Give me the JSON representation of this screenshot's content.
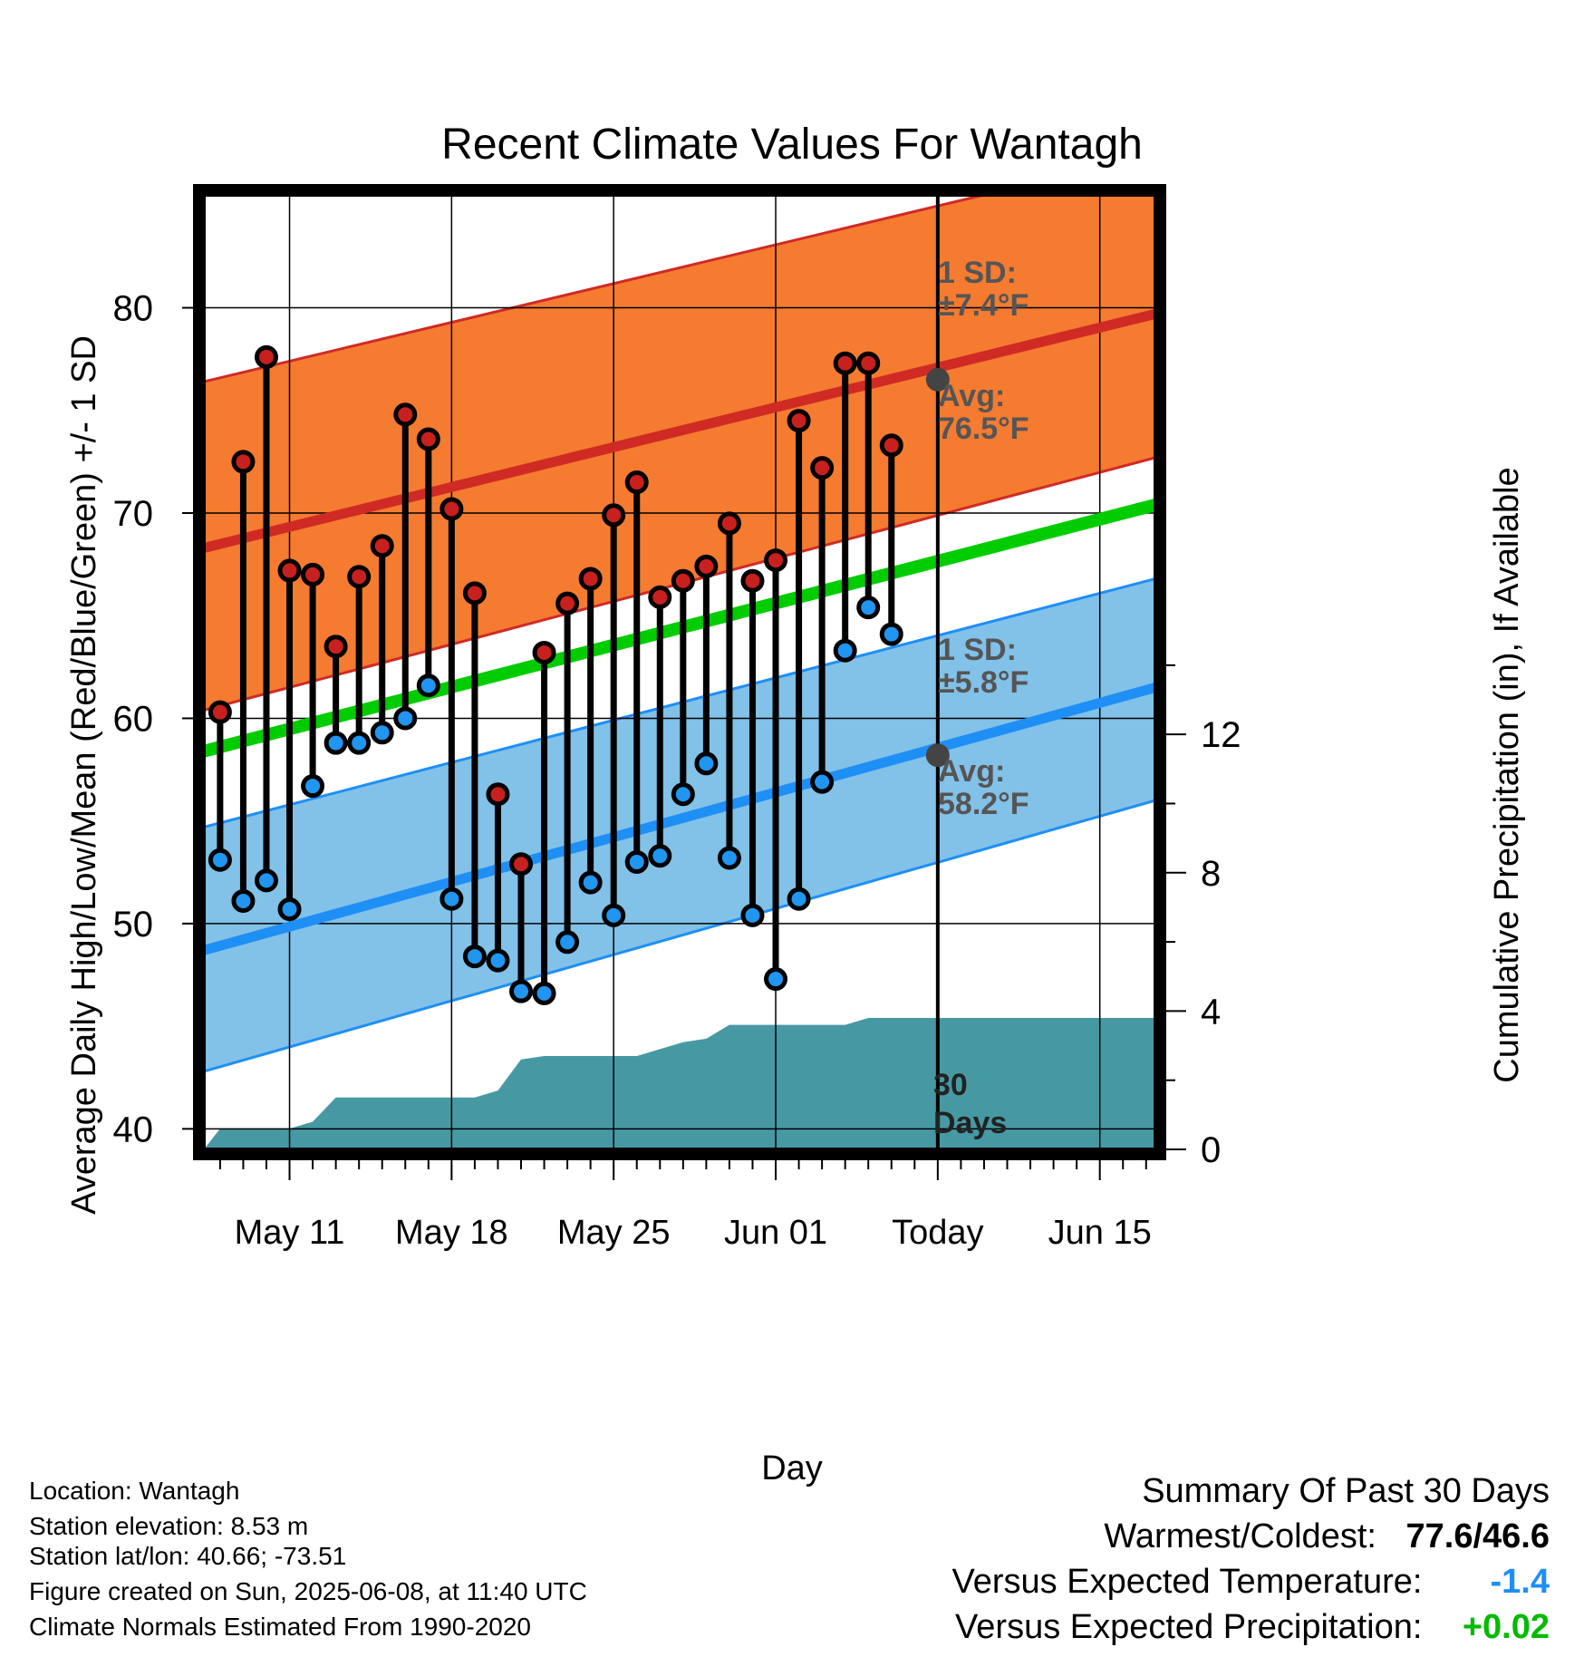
{
  "chart_data": {
    "type": "line",
    "title": "Recent Climate Values For Wantagh",
    "xlabel": "Day",
    "ylabel": "Average Daily High/Low/Mean (Red/Blue/Green) +/- 1 SD",
    "y2label": "Cumulative Precipitation (in), If Available",
    "ylim": [
      39,
      85.5
    ],
    "y2lim": [
      0,
      27.6
    ],
    "yticks": [
      40,
      50,
      60,
      70,
      80
    ],
    "y2ticks": [
      0,
      4,
      8,
      12
    ],
    "xlim": [
      7.3,
      48.4
    ],
    "xtick_positions": [
      11,
      18,
      25,
      32,
      39,
      46
    ],
    "xtick_labels": [
      "May 11",
      "May 18",
      "May 25",
      "Jun 01",
      "Today",
      "Jun 15"
    ],
    "grid": true,
    "x_note": "day number counted from May 1 (May 1 = 1)",
    "days": [
      8,
      9,
      10,
      11,
      12,
      13,
      14,
      15,
      16,
      17,
      18,
      19,
      20,
      21,
      22,
      23,
      24,
      25,
      26,
      27,
      28,
      29,
      30,
      31,
      32,
      33,
      34,
      35,
      36,
      37,
      38
    ],
    "highs": [
      60.3,
      72.5,
      77.6,
      67.2,
      67.0,
      63.5,
      66.9,
      68.4,
      74.8,
      73.6,
      70.2,
      66.1,
      56.3,
      52.9,
      63.2,
      65.6,
      66.8,
      69.9,
      71.5,
      65.9,
      66.7,
      67.4,
      69.5,
      66.7,
      67.7,
      74.5,
      72.2,
      77.3,
      77.3,
      73.3,
      null
    ],
    "lows": [
      53.1,
      51.1,
      52.1,
      50.7,
      56.7,
      58.8,
      58.8,
      59.3,
      60.0,
      61.6,
      51.2,
      48.4,
      48.2,
      46.7,
      46.6,
      49.1,
      52.0,
      50.4,
      53.0,
      53.3,
      56.3,
      57.8,
      53.2,
      50.4,
      47.3,
      51.2,
      56.9,
      63.3,
      65.4,
      64.1,
      null
    ],
    "normal_high": {
      "x": [
        7.3,
        48.4
      ],
      "values": [
        68.3,
        79.7
      ]
    },
    "normal_high_band": {
      "upper": [
        76.4,
        87.5
      ],
      "lower": [
        60.4,
        72.7
      ]
    },
    "normal_low": {
      "x": [
        7.3,
        48.4
      ],
      "values": [
        48.7,
        61.5
      ]
    },
    "normal_low_band": {
      "upper": [
        54.7,
        66.8
      ],
      "lower": [
        42.8,
        56.0
      ]
    },
    "normal_mean": {
      "x": [
        7.3,
        48.4
      ],
      "values": [
        58.4,
        70.4
      ]
    },
    "precip_cumulative": {
      "x": [
        7.3,
        8,
        9,
        10,
        11,
        12,
        13,
        14,
        15,
        16,
        17,
        18,
        19,
        20,
        21,
        22,
        23,
        24,
        25,
        26,
        27,
        28,
        29,
        30,
        31,
        32,
        33,
        34,
        35,
        36,
        37,
        38,
        48.4
      ],
      "values": [
        0.0,
        0.6,
        0.6,
        0.6,
        0.6,
        0.8,
        1.5,
        1.5,
        1.5,
        1.5,
        1.5,
        1.5,
        1.5,
        1.7,
        2.6,
        2.7,
        2.7,
        2.7,
        2.7,
        2.7,
        2.9,
        3.1,
        3.2,
        3.6,
        3.6,
        3.6,
        3.6,
        3.6,
        3.6,
        3.8,
        3.8,
        3.8,
        3.8
      ]
    },
    "today_marker": {
      "x": 39,
      "label_line1": "30",
      "label_line2": "Days"
    },
    "annotations": {
      "high_sd_line1": "1 SD:",
      "high_sd_line2": "±7.4°F",
      "high_avg_line1": "Avg:",
      "high_avg_line2": "76.5°F",
      "high_avg_value": 76.5,
      "low_sd_line1": "1 SD:",
      "low_sd_line2": "±5.8°F",
      "low_avg_line1": "Avg:",
      "low_avg_line2": "58.2°F",
      "low_avg_value": 58.2
    },
    "colors": {
      "high_band": "#F47B30",
      "high_line": "#D02A25",
      "low_band": "#82C1E8",
      "low_line": "#1E8FF5",
      "mean_line": "#00CC00",
      "precip": "#4699A3",
      "high_marker": "#C8201E",
      "low_marker": "#2096F0",
      "annotation_text": "#555555"
    }
  },
  "info": {
    "location": "Location: Wantagh",
    "elevation": "Station elevation: 8.53 m",
    "latlon": "Station lat/lon: 40.66; -73.51",
    "created": "Figure created on Sun, 2025-06-08, at 11:40 UTC",
    "normals": "Climate Normals Estimated From 1990-2020"
  },
  "summary": {
    "title": "Summary Of Past 30 Days",
    "warmest_label": "Warmest/Coldest:",
    "warmest_value": "77.6/46.6",
    "temp_label": "Versus Expected Temperature:",
    "temp_value": "-1.4",
    "temp_color": "#1E8FF5",
    "precip_label": "Versus Expected Precipitation:",
    "precip_value": "+0.02",
    "precip_color": "#00BB00"
  }
}
